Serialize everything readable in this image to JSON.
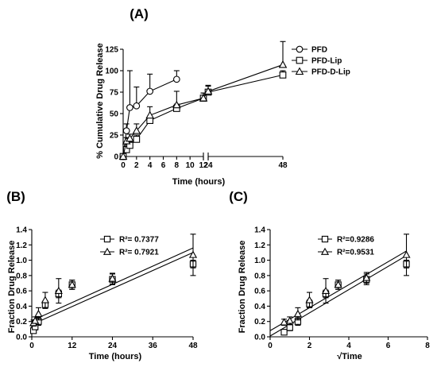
{
  "chart_data": [
    {
      "panel": "(A)",
      "type": "line",
      "xlabel": "Time (hours)",
      "ylabel": "% Cumulative Drug Release",
      "x_axis_break": [
        12,
        24
      ],
      "xticks": [
        0,
        2,
        4,
        6,
        8,
        10,
        12,
        24,
        48
      ],
      "yticks": [
        0,
        25,
        50,
        75,
        100,
        125
      ],
      "ylim": [
        0,
        125
      ],
      "legend_position": "top-right",
      "series": [
        {
          "name": "PFD",
          "marker": "circle",
          "x": [
            0,
            0.5,
            1,
            2,
            4,
            8
          ],
          "y": [
            0,
            30,
            57,
            59,
            76,
            90
          ],
          "err": [
            0,
            8,
            43,
            22,
            20,
            10
          ]
        },
        {
          "name": "PFD-Lip",
          "marker": "square",
          "x": [
            0,
            0.5,
            1,
            2,
            4,
            8,
            12,
            24,
            48
          ],
          "y": [
            0,
            8,
            13,
            20,
            42,
            56,
            68,
            75,
            95
          ],
          "err": [
            0,
            3,
            4,
            5,
            5,
            5,
            6,
            7,
            5
          ]
        },
        {
          "name": "PFD-D-Lip",
          "marker": "triangle",
          "x": [
            0,
            0.5,
            1,
            2,
            4,
            8,
            12,
            24,
            48
          ],
          "y": [
            0,
            18,
            21,
            30,
            48,
            60,
            68,
            76,
            107
          ],
          "err": [
            0,
            4,
            5,
            8,
            10,
            16,
            6,
            7,
            27
          ]
        }
      ]
    },
    {
      "panel": "(B)",
      "type": "scatter",
      "xlabel": "Time (hours)",
      "ylabel": "Fraction Drug Release",
      "xlim": [
        0,
        48
      ],
      "ylim": [
        0,
        1.4
      ],
      "xticks": [
        0,
        12,
        24,
        36,
        48
      ],
      "yticks": [
        0.0,
        0.2,
        0.4,
        0.6,
        0.8,
        1.0,
        1.2,
        1.4
      ],
      "series": [
        {
          "name": "R²= 0.7377",
          "marker": "square",
          "x": [
            0.5,
            1,
            2,
            4,
            8,
            12,
            24,
            48
          ],
          "y": [
            0.08,
            0.13,
            0.2,
            0.42,
            0.56,
            0.68,
            0.75,
            0.95
          ],
          "err": [
            0.03,
            0.04,
            0.05,
            0.05,
            0.05,
            0.06,
            0.07,
            0.05
          ],
          "fit": [
            [
              0,
              0.16
            ],
            [
              48,
              1.1
            ]
          ]
        },
        {
          "name": "R²= 0.7921",
          "marker": "triangle",
          "x": [
            0.5,
            1,
            2,
            4,
            8,
            12,
            24,
            48
          ],
          "y": [
            0.18,
            0.21,
            0.3,
            0.48,
            0.6,
            0.68,
            0.76,
            1.07
          ],
          "err": [
            0.04,
            0.05,
            0.08,
            0.1,
            0.16,
            0.06,
            0.07,
            0.27
          ],
          "fit": [
            [
              0,
              0.21
            ],
            [
              48,
              1.16
            ]
          ]
        }
      ]
    },
    {
      "panel": "(C)",
      "type": "scatter",
      "xlabel": "√Time",
      "ylabel": "Fraction Drug Release",
      "xlim": [
        0,
        8
      ],
      "ylim": [
        0,
        1.4
      ],
      "xticks": [
        0,
        2,
        4,
        6,
        8
      ],
      "yticks": [
        0.0,
        0.2,
        0.4,
        0.6,
        0.8,
        1.0,
        1.2,
        1.4
      ],
      "series": [
        {
          "name": "R²=0.9286",
          "marker": "square",
          "x": [
            0.71,
            1,
            1.41,
            2,
            2.83,
            3.46,
            4.9,
            6.93
          ],
          "y": [
            0.06,
            0.12,
            0.2,
            0.43,
            0.56,
            0.68,
            0.75,
            0.95
          ],
          "err": [
            0.03,
            0.04,
            0.05,
            0.05,
            0.05,
            0.06,
            0.07,
            0.05
          ],
          "fit": [
            [
              0,
              0.01
            ],
            [
              6.93,
              1.06
            ]
          ]
        },
        {
          "name": "R²=0.9531",
          "marker": "triangle",
          "x": [
            0.71,
            1,
            1.41,
            2,
            2.83,
            3.46,
            4.9,
            6.93
          ],
          "y": [
            0.19,
            0.21,
            0.3,
            0.48,
            0.6,
            0.68,
            0.77,
            1.07
          ],
          "err": [
            0.04,
            0.05,
            0.08,
            0.1,
            0.16,
            0.06,
            0.07,
            0.27
          ],
          "fit": [
            [
              0,
              0.08
            ],
            [
              6.93,
              1.12
            ]
          ]
        }
      ]
    }
  ]
}
